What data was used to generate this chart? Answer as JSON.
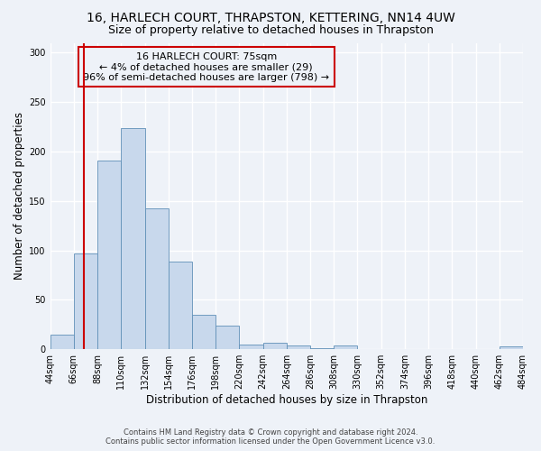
{
  "title": "16, HARLECH COURT, THRAPSTON, KETTERING, NN14 4UW",
  "subtitle": "Size of property relative to detached houses in Thrapston",
  "xlabel": "Distribution of detached houses by size in Thrapston",
  "ylabel": "Number of detached properties",
  "annotation_title": "16 HARLECH COURT: 75sqm",
  "annotation_line1": "← 4% of detached houses are smaller (29)",
  "annotation_line2": "96% of semi-detached houses are larger (798) →",
  "footer1": "Contains HM Land Registry data © Crown copyright and database right 2024.",
  "footer2": "Contains public sector information licensed under the Open Government Licence v3.0.",
  "bar_color": "#c8d8ec",
  "bar_edge_color": "#6090b8",
  "vline_x": 75,
  "vline_color": "#cc0000",
  "annotation_box_color": "#cc0000",
  "bin_edges": [
    44,
    66,
    88,
    110,
    132,
    154,
    176,
    198,
    220,
    242,
    264,
    286,
    308,
    330,
    352,
    374,
    396,
    418,
    440,
    462,
    484
  ],
  "bar_heights": [
    15,
    97,
    191,
    224,
    143,
    89,
    35,
    24,
    5,
    7,
    4,
    1,
    4,
    0,
    0,
    0,
    0,
    0,
    0,
    3
  ],
  "ylim": [
    0,
    310
  ],
  "background_color": "#eef2f8",
  "grid_color": "#ffffff",
  "tick_label_fontsize": 7,
  "title_fontsize": 10,
  "subtitle_fontsize": 9,
  "ylabel_fontsize": 8.5,
  "xlabel_fontsize": 8.5,
  "annotation_fontsize": 8,
  "footer_fontsize": 6,
  "yticks": [
    0,
    50,
    100,
    150,
    200,
    250,
    300
  ]
}
